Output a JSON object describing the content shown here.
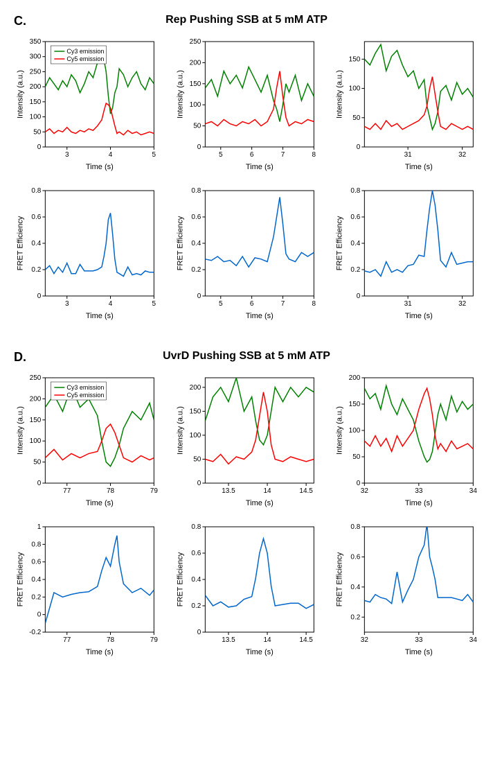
{
  "sectionC": {
    "label": "C.",
    "title": "Rep Pushing SSB at 5 mM ATP",
    "legend": {
      "cy3": "Cy3 emission",
      "cy5": "Cy5 emission"
    },
    "colors": {
      "cy3": "#008000",
      "cy5": "#ff0000",
      "fret": "#0066cc",
      "axis": "#000000"
    },
    "charts": [
      {
        "type": "intensity",
        "xlabel": "Time (s)",
        "ylabel": "Intensity (a.u.)",
        "xlim": [
          2.5,
          5
        ],
        "ylim": [
          0,
          350
        ],
        "xticks": [
          3,
          4,
          5
        ],
        "yticks": [
          0,
          50,
          100,
          150,
          200,
          250,
          300,
          350
        ],
        "cy3_x": [
          2.5,
          2.6,
          2.7,
          2.8,
          2.9,
          3.0,
          3.1,
          3.2,
          3.3,
          3.4,
          3.5,
          3.6,
          3.7,
          3.8,
          3.85,
          3.9,
          3.95,
          4.0,
          4.05,
          4.1,
          4.15,
          4.2,
          4.3,
          4.4,
          4.5,
          4.6,
          4.7,
          4.8,
          4.9,
          5.0
        ],
        "cy3_y": [
          200,
          230,
          210,
          190,
          220,
          200,
          240,
          220,
          180,
          210,
          250,
          230,
          280,
          320,
          290,
          250,
          170,
          110,
          130,
          180,
          200,
          260,
          240,
          200,
          230,
          250,
          210,
          190,
          230,
          210
        ],
        "cy5_x": [
          2.5,
          2.6,
          2.7,
          2.8,
          2.9,
          3.0,
          3.1,
          3.2,
          3.3,
          3.4,
          3.5,
          3.6,
          3.7,
          3.8,
          3.85,
          3.9,
          3.95,
          4.0,
          4.05,
          4.1,
          4.15,
          4.2,
          4.3,
          4.4,
          4.5,
          4.6,
          4.7,
          4.8,
          4.9,
          5.0
        ],
        "cy5_y": [
          50,
          60,
          45,
          55,
          50,
          65,
          50,
          45,
          55,
          50,
          60,
          55,
          70,
          90,
          120,
          145,
          140,
          130,
          100,
          70,
          45,
          50,
          40,
          55,
          45,
          50,
          40,
          45,
          50,
          45
        ],
        "showLegend": true
      },
      {
        "type": "intensity",
        "xlabel": "Time (s)",
        "ylabel": "Intensity (a.u.)",
        "xlim": [
          4.5,
          8
        ],
        "ylim": [
          0,
          250
        ],
        "xticks": [
          5,
          6,
          7,
          8
        ],
        "yticks": [
          0,
          50,
          100,
          150,
          200,
          250
        ],
        "cy3_x": [
          4.5,
          4.7,
          4.9,
          5.1,
          5.3,
          5.5,
          5.7,
          5.9,
          6.1,
          6.3,
          6.5,
          6.7,
          6.8,
          6.9,
          7.0,
          7.1,
          7.2,
          7.4,
          7.6,
          7.8,
          8.0
        ],
        "cy3_y": [
          140,
          160,
          120,
          180,
          150,
          170,
          140,
          190,
          160,
          130,
          170,
          110,
          90,
          60,
          100,
          150,
          130,
          170,
          110,
          150,
          120
        ],
        "cy5_x": [
          4.5,
          4.7,
          4.9,
          5.1,
          5.3,
          5.5,
          5.7,
          5.9,
          6.1,
          6.3,
          6.5,
          6.7,
          6.8,
          6.9,
          7.0,
          7.1,
          7.2,
          7.4,
          7.6,
          7.8,
          8.0
        ],
        "cy5_y": [
          55,
          60,
          50,
          65,
          55,
          50,
          60,
          55,
          65,
          50,
          60,
          90,
          140,
          180,
          120,
          70,
          50,
          60,
          55,
          65,
          60
        ],
        "showLegend": false
      },
      {
        "type": "intensity",
        "xlabel": "Time (s)",
        "ylabel": "Intensity (a.u.)",
        "xlim": [
          30.2,
          32.2
        ],
        "ylim": [
          0,
          180
        ],
        "xticks": [
          31,
          32
        ],
        "yticks": [
          0,
          50,
          100,
          150
        ],
        "cy3_x": [
          30.2,
          30.3,
          30.4,
          30.5,
          30.6,
          30.7,
          30.8,
          30.9,
          31.0,
          31.1,
          31.2,
          31.3,
          31.35,
          31.4,
          31.45,
          31.5,
          31.55,
          31.6,
          31.7,
          31.8,
          31.9,
          32.0,
          32.1,
          32.2
        ],
        "cy3_y": [
          150,
          140,
          160,
          175,
          130,
          155,
          165,
          140,
          120,
          130,
          100,
          115,
          70,
          50,
          30,
          40,
          60,
          95,
          105,
          80,
          110,
          90,
          100,
          85
        ],
        "cy5_x": [
          30.2,
          30.3,
          30.4,
          30.5,
          30.6,
          30.7,
          30.8,
          30.9,
          31.0,
          31.1,
          31.2,
          31.3,
          31.35,
          31.4,
          31.45,
          31.5,
          31.55,
          31.6,
          31.7,
          31.8,
          31.9,
          32.0,
          32.1,
          32.2
        ],
        "cy5_y": [
          35,
          30,
          40,
          30,
          45,
          35,
          40,
          30,
          35,
          40,
          45,
          55,
          70,
          100,
          120,
          90,
          60,
          35,
          30,
          40,
          35,
          30,
          35,
          30
        ],
        "showLegend": false
      },
      {
        "type": "fret",
        "xlabel": "Time (s)",
        "ylabel": "FRET Efficiency",
        "xlim": [
          2.5,
          5
        ],
        "ylim": [
          0,
          0.8
        ],
        "xticks": [
          3,
          4,
          5
        ],
        "yticks": [
          0.0,
          0.2,
          0.4,
          0.6,
          0.8
        ],
        "fret_x": [
          2.5,
          2.6,
          2.7,
          2.8,
          2.9,
          3.0,
          3.1,
          3.2,
          3.3,
          3.4,
          3.5,
          3.6,
          3.7,
          3.8,
          3.85,
          3.9,
          3.95,
          4.0,
          4.05,
          4.1,
          4.15,
          4.2,
          4.3,
          4.4,
          4.5,
          4.6,
          4.7,
          4.8,
          4.9,
          5.0
        ],
        "fret_y": [
          0.2,
          0.23,
          0.17,
          0.22,
          0.18,
          0.25,
          0.17,
          0.17,
          0.24,
          0.19,
          0.19,
          0.19,
          0.2,
          0.22,
          0.3,
          0.4,
          0.58,
          0.63,
          0.47,
          0.28,
          0.18,
          0.17,
          0.15,
          0.22,
          0.16,
          0.17,
          0.16,
          0.19,
          0.18,
          0.18
        ]
      },
      {
        "type": "fret",
        "xlabel": "Time (s)",
        "ylabel": "FRET Efficiency",
        "xlim": [
          4.5,
          8
        ],
        "ylim": [
          0,
          0.8
        ],
        "xticks": [
          5,
          6,
          7,
          8
        ],
        "yticks": [
          0.0,
          0.2,
          0.4,
          0.6,
          0.8
        ],
        "fret_x": [
          4.5,
          4.7,
          4.9,
          5.1,
          5.3,
          5.5,
          5.7,
          5.9,
          6.1,
          6.3,
          6.5,
          6.7,
          6.8,
          6.9,
          7.0,
          7.1,
          7.2,
          7.4,
          7.6,
          7.8,
          8.0
        ],
        "fret_y": [
          0.28,
          0.27,
          0.3,
          0.26,
          0.27,
          0.23,
          0.3,
          0.22,
          0.29,
          0.28,
          0.26,
          0.45,
          0.6,
          0.75,
          0.55,
          0.32,
          0.28,
          0.26,
          0.33,
          0.3,
          0.33
        ]
      },
      {
        "type": "fret",
        "xlabel": "Time (s)",
        "ylabel": "FRET Efficiency",
        "xlim": [
          30.2,
          32.2
        ],
        "ylim": [
          0,
          0.8
        ],
        "xticks": [
          31,
          32
        ],
        "yticks": [
          0.0,
          0.2,
          0.4,
          0.6,
          0.8
        ],
        "fret_x": [
          30.2,
          30.3,
          30.4,
          30.5,
          30.6,
          30.7,
          30.8,
          30.9,
          31.0,
          31.1,
          31.2,
          31.3,
          31.35,
          31.4,
          31.45,
          31.5,
          31.55,
          31.6,
          31.7,
          31.8,
          31.9,
          32.0,
          32.1,
          32.2
        ],
        "fret_y": [
          0.19,
          0.18,
          0.2,
          0.15,
          0.26,
          0.18,
          0.2,
          0.18,
          0.23,
          0.24,
          0.31,
          0.3,
          0.5,
          0.67,
          0.8,
          0.69,
          0.5,
          0.27,
          0.22,
          0.33,
          0.24,
          0.25,
          0.26,
          0.26
        ]
      }
    ]
  },
  "sectionD": {
    "label": "D.",
    "title": "UvrD Pushing SSB at 5 mM ATP",
    "legend": {
      "cy3": "Cy3 emission",
      "cy5": "Cy5 emission"
    },
    "colors": {
      "cy3": "#008000",
      "cy5": "#ff0000",
      "fret": "#0066cc",
      "axis": "#000000"
    },
    "charts": [
      {
        "type": "intensity",
        "xlabel": "Time (s)",
        "ylabel": "Intensity (a.u.)",
        "xlim": [
          76.5,
          79
        ],
        "ylim": [
          0,
          250
        ],
        "xticks": [
          77,
          78,
          79
        ],
        "yticks": [
          0,
          50,
          100,
          150,
          200,
          250
        ],
        "cy3_x": [
          76.5,
          76.7,
          76.9,
          77.1,
          77.3,
          77.5,
          77.7,
          77.8,
          77.9,
          78.0,
          78.1,
          78.2,
          78.3,
          78.5,
          78.7,
          78.9,
          79.0
        ],
        "cy3_y": [
          180,
          210,
          170,
          230,
          180,
          200,
          160,
          100,
          50,
          40,
          60,
          90,
          130,
          170,
          150,
          190,
          150
        ],
        "cy5_x": [
          76.5,
          76.7,
          76.9,
          77.1,
          77.3,
          77.5,
          77.7,
          77.8,
          77.9,
          78.0,
          78.1,
          78.2,
          78.3,
          78.5,
          78.7,
          78.9,
          79.0
        ],
        "cy5_y": [
          60,
          80,
          55,
          70,
          60,
          70,
          75,
          100,
          130,
          140,
          120,
          90,
          60,
          50,
          65,
          55,
          60
        ],
        "showLegend": true
      },
      {
        "type": "intensity",
        "xlabel": "Time (s)",
        "ylabel": "Intensity (a.u.)",
        "xlim": [
          13.2,
          14.6
        ],
        "ylim": [
          0,
          220
        ],
        "xticks": [
          13.5,
          14.0,
          14.5
        ],
        "yticks": [
          0,
          50,
          100,
          150,
          200
        ],
        "cy3_x": [
          13.2,
          13.3,
          13.4,
          13.5,
          13.6,
          13.7,
          13.8,
          13.85,
          13.9,
          13.95,
          14.0,
          14.05,
          14.1,
          14.2,
          14.3,
          14.4,
          14.5,
          14.6
        ],
        "cy3_y": [
          130,
          180,
          200,
          170,
          220,
          150,
          180,
          130,
          90,
          80,
          100,
          150,
          200,
          170,
          200,
          180,
          200,
          190
        ],
        "cy5_x": [
          13.2,
          13.3,
          13.4,
          13.5,
          13.6,
          13.7,
          13.8,
          13.85,
          13.9,
          13.95,
          14.0,
          14.05,
          14.1,
          14.2,
          14.3,
          14.4,
          14.5,
          14.6
        ],
        "cy5_y": [
          50,
          45,
          60,
          40,
          55,
          50,
          65,
          90,
          140,
          190,
          150,
          80,
          50,
          45,
          55,
          50,
          45,
          50
        ],
        "showLegend": false
      },
      {
        "type": "intensity",
        "xlabel": "Time (s)",
        "ylabel": "Intensity (a.u.)",
        "xlim": [
          32,
          34
        ],
        "ylim": [
          0,
          200
        ],
        "xticks": [
          32,
          33,
          34
        ],
        "yticks": [
          0,
          50,
          100,
          150,
          200
        ],
        "cy3_x": [
          32.0,
          32.1,
          32.2,
          32.3,
          32.4,
          32.5,
          32.6,
          32.7,
          32.8,
          32.9,
          33.0,
          33.1,
          33.15,
          33.2,
          33.25,
          33.3,
          33.35,
          33.4,
          33.5,
          33.6,
          33.7,
          33.8,
          33.9,
          34.0
        ],
        "cy3_y": [
          180,
          160,
          170,
          140,
          185,
          150,
          130,
          160,
          140,
          120,
          80,
          50,
          40,
          45,
          60,
          95,
          130,
          150,
          120,
          165,
          135,
          155,
          140,
          150
        ],
        "cy5_x": [
          32.0,
          32.1,
          32.2,
          32.3,
          32.4,
          32.5,
          32.6,
          32.7,
          32.8,
          32.9,
          33.0,
          33.1,
          33.15,
          33.2,
          33.25,
          33.3,
          33.35,
          33.4,
          33.5,
          33.6,
          33.7,
          33.8,
          33.9,
          34.0
        ],
        "cy5_y": [
          80,
          70,
          90,
          70,
          85,
          60,
          90,
          70,
          85,
          100,
          140,
          170,
          180,
          160,
          130,
          90,
          65,
          75,
          60,
          80,
          65,
          70,
          75,
          65
        ],
        "showLegend": false
      },
      {
        "type": "fret",
        "xlabel": "Time (s)",
        "ylabel": "FRET Efficiency",
        "xlim": [
          76.5,
          79.0
        ],
        "ylim": [
          -0.2,
          1.0
        ],
        "xticks": [
          77,
          78,
          79
        ],
        "yticks": [
          -0.2,
          0.0,
          0.2,
          0.4,
          0.6,
          0.8,
          1.0
        ],
        "fret_x": [
          76.5,
          76.7,
          76.9,
          77.1,
          77.3,
          77.5,
          77.7,
          77.8,
          77.9,
          78.0,
          78.1,
          78.15,
          78.2,
          78.3,
          78.5,
          78.7,
          78.9,
          79.0
        ],
        "fret_y": [
          -0.1,
          0.25,
          0.2,
          0.23,
          0.25,
          0.26,
          0.32,
          0.5,
          0.65,
          0.55,
          0.8,
          0.9,
          0.6,
          0.35,
          0.25,
          0.3,
          0.22,
          0.28
        ]
      },
      {
        "type": "fret",
        "xlabel": "Time (s)",
        "ylabel": "FRET Efficiency",
        "xlim": [
          13.2,
          14.6
        ],
        "ylim": [
          0,
          0.8
        ],
        "xticks": [
          13.5,
          14.0,
          14.5
        ],
        "yticks": [
          0.0,
          0.2,
          0.4,
          0.6,
          0.8
        ],
        "fret_x": [
          13.2,
          13.3,
          13.4,
          13.5,
          13.6,
          13.7,
          13.8,
          13.85,
          13.9,
          13.95,
          14.0,
          14.05,
          14.1,
          14.2,
          14.3,
          14.4,
          14.5,
          14.6
        ],
        "fret_y": [
          0.28,
          0.2,
          0.23,
          0.19,
          0.2,
          0.25,
          0.27,
          0.41,
          0.6,
          0.71,
          0.6,
          0.35,
          0.2,
          0.21,
          0.22,
          0.22,
          0.18,
          0.21
        ]
      },
      {
        "type": "fret",
        "xlabel": "Time (s)",
        "ylabel": "FRET Efficiency",
        "xlim": [
          32,
          34
        ],
        "ylim": [
          0.1,
          0.8
        ],
        "xticks": [
          32,
          33,
          34
        ],
        "yticks": [
          0.2,
          0.4,
          0.6,
          0.8
        ],
        "fret_x": [
          32.0,
          32.1,
          32.2,
          32.3,
          32.4,
          32.5,
          32.6,
          32.7,
          32.8,
          32.9,
          33.0,
          33.1,
          33.15,
          33.2,
          33.25,
          33.3,
          33.35,
          33.4,
          33.5,
          33.6,
          33.7,
          33.8,
          33.9,
          34.0
        ],
        "fret_y": [
          0.31,
          0.3,
          0.35,
          0.33,
          0.32,
          0.29,
          0.5,
          0.3,
          0.38,
          0.45,
          0.6,
          0.68,
          0.82,
          0.6,
          0.53,
          0.45,
          0.33,
          0.33,
          0.33,
          0.33,
          0.32,
          0.31,
          0.35,
          0.3
        ]
      }
    ]
  }
}
